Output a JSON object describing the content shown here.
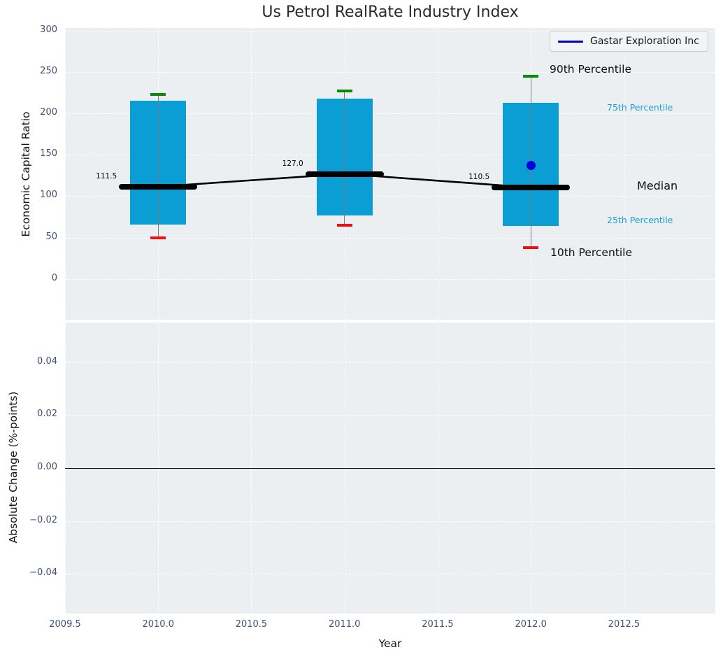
{
  "legend": {
    "label": "Gastar Exploration Inc",
    "line_color": "#0000cc"
  },
  "annotations": {
    "p90": "90th Percentile",
    "p75": "75th Percentile",
    "median": "Median",
    "p25": "25th Percentile",
    "p10": "10th Percentile"
  },
  "chart_data": {
    "type": "boxplot",
    "title": "Us Petrol RealRate Industry Index",
    "xlabel": "Year",
    "xlim": [
      2009.5,
      2012.99
    ],
    "x_ticks": [
      {
        "value": 2009.5,
        "label": "2009.5"
      },
      {
        "value": 2010.0,
        "label": "2010.0"
      },
      {
        "value": 2010.5,
        "label": "2010.5"
      },
      {
        "value": 2011.0,
        "label": "2011.0"
      },
      {
        "value": 2011.5,
        "label": "2011.5"
      },
      {
        "value": 2012.0,
        "label": "2012.0"
      },
      {
        "value": 2012.5,
        "label": "2012.5"
      }
    ],
    "colors": {
      "box": "#0a9ed4",
      "p90_cap": "#0a8a0a",
      "p10_cap": "#ee1111",
      "median": "#000000",
      "whisker": "#7a7a7a",
      "percentile_label_cyan": "#1b9fd4"
    },
    "subplots": [
      {
        "ylabel": "Economic Capital Ratio",
        "ylim": [
          -49,
          303
        ],
        "y_ticks": [
          {
            "value": 300,
            "label": "300"
          },
          {
            "value": 250,
            "label": "250"
          },
          {
            "value": 200,
            "label": "200"
          },
          {
            "value": 150,
            "label": "150"
          },
          {
            "value": 100,
            "label": "100"
          },
          {
            "value": 50,
            "label": "50"
          },
          {
            "value": 0,
            "label": "0"
          }
        ],
        "boxes": [
          {
            "year": 2010,
            "p10": 50,
            "p25": 66,
            "median": 111.5,
            "p75": 215,
            "p90": 223,
            "median_label": "111.5"
          },
          {
            "year": 2011,
            "p10": 65,
            "p25": 77,
            "median": 127.0,
            "p75": 218,
            "p90": 227,
            "median_label": "127.0"
          },
          {
            "year": 2012,
            "p10": 38,
            "p25": 64,
            "median": 110.5,
            "p75": 213,
            "p90": 245,
            "median_label": "110.5"
          }
        ],
        "company_point": {
          "year": 2012,
          "value": 137,
          "color": "#0000dd"
        }
      },
      {
        "ylabel": "Absolute Change (%-points)",
        "ylim": [
          -0.055,
          0.055
        ],
        "y_ticks": [
          {
            "value": 0.04,
            "label": "0.04"
          },
          {
            "value": 0.02,
            "label": "0.02"
          },
          {
            "value": 0.0,
            "label": "0.00"
          },
          {
            "value": -0.02,
            "label": "−0.02"
          },
          {
            "value": -0.04,
            "label": "−0.04"
          }
        ],
        "zero_line": 0.0
      }
    ]
  }
}
